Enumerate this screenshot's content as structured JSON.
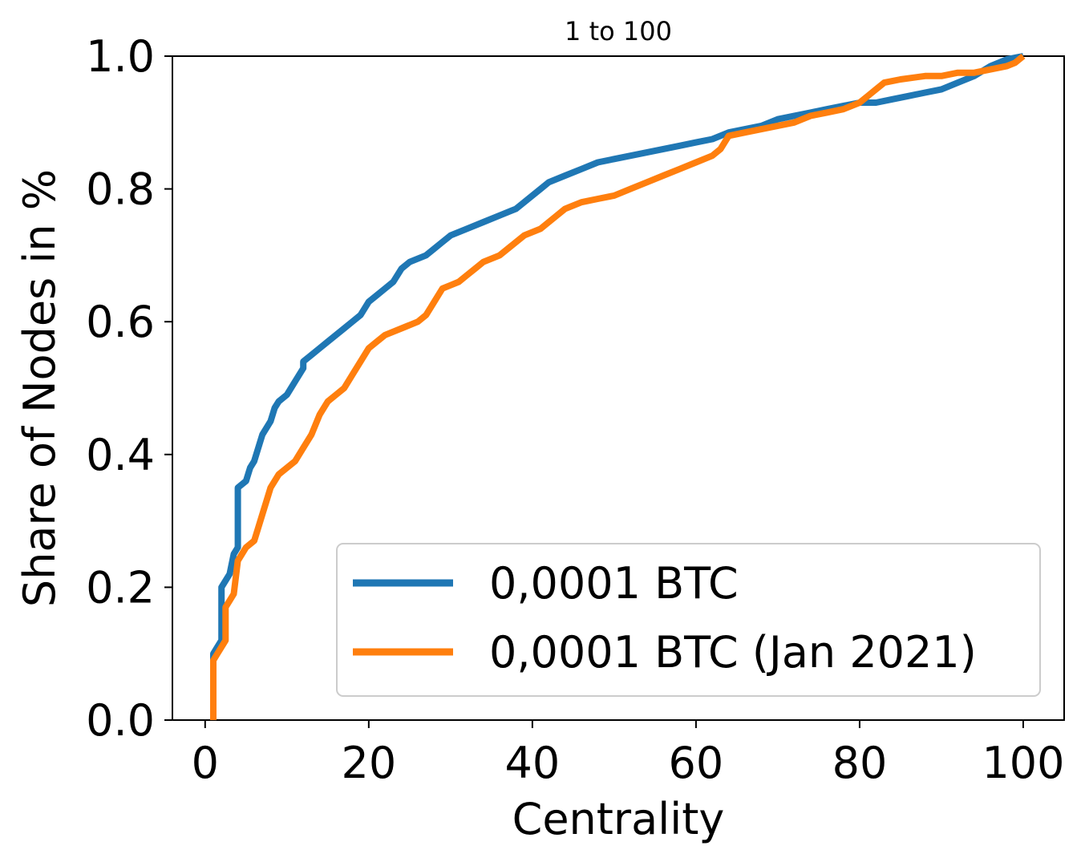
{
  "chart_data": {
    "type": "line",
    "title": "1 to 100",
    "xlabel": "Centrality",
    "ylabel": "Share of Nodes in %",
    "xlim": [
      -4,
      105
    ],
    "ylim": [
      0,
      1.0
    ],
    "x_ticks": [
      "0",
      "20",
      "40",
      "60",
      "80",
      "100"
    ],
    "y_ticks": [
      "0.0",
      "0.2",
      "0.4",
      "0.6",
      "0.8",
      "1.0"
    ],
    "grid": false,
    "legend_position": "lower-right",
    "series": [
      {
        "name": "0,0001 BTC",
        "color": "#1f77b4",
        "points": [
          [
            1,
            0.0
          ],
          [
            1,
            0.1
          ],
          [
            1.5,
            0.11
          ],
          [
            2,
            0.12
          ],
          [
            2,
            0.2
          ],
          [
            2.5,
            0.21
          ],
          [
            3,
            0.22
          ],
          [
            3.5,
            0.25
          ],
          [
            4,
            0.26
          ],
          [
            4,
            0.35
          ],
          [
            5,
            0.36
          ],
          [
            5.5,
            0.38
          ],
          [
            6,
            0.39
          ],
          [
            6.5,
            0.41
          ],
          [
            7,
            0.43
          ],
          [
            8,
            0.45
          ],
          [
            8.5,
            0.47
          ],
          [
            9,
            0.48
          ],
          [
            10,
            0.49
          ],
          [
            10.5,
            0.5
          ],
          [
            11,
            0.51
          ],
          [
            12,
            0.53
          ],
          [
            12,
            0.54
          ],
          [
            13,
            0.55
          ],
          [
            14,
            0.56
          ],
          [
            15,
            0.57
          ],
          [
            16,
            0.58
          ],
          [
            17,
            0.59
          ],
          [
            18,
            0.6
          ],
          [
            19,
            0.61
          ],
          [
            20,
            0.63
          ],
          [
            21,
            0.64
          ],
          [
            22,
            0.65
          ],
          [
            23,
            0.66
          ],
          [
            24,
            0.68
          ],
          [
            25,
            0.69
          ],
          [
            27,
            0.7
          ],
          [
            28,
            0.71
          ],
          [
            29,
            0.72
          ],
          [
            30,
            0.73
          ],
          [
            32,
            0.74
          ],
          [
            34,
            0.75
          ],
          [
            36,
            0.76
          ],
          [
            38,
            0.77
          ],
          [
            40,
            0.79
          ],
          [
            41,
            0.8
          ],
          [
            42,
            0.81
          ],
          [
            44,
            0.82
          ],
          [
            46,
            0.83
          ],
          [
            48,
            0.84
          ],
          [
            50,
            0.845
          ],
          [
            52,
            0.85
          ],
          [
            54,
            0.855
          ],
          [
            56,
            0.86
          ],
          [
            58,
            0.865
          ],
          [
            60,
            0.87
          ],
          [
            62,
            0.875
          ],
          [
            64,
            0.885
          ],
          [
            66,
            0.89
          ],
          [
            68,
            0.895
          ],
          [
            70,
            0.905
          ],
          [
            72,
            0.91
          ],
          [
            74,
            0.915
          ],
          [
            76,
            0.92
          ],
          [
            78,
            0.925
          ],
          [
            80,
            0.93
          ],
          [
            82,
            0.93
          ],
          [
            84,
            0.935
          ],
          [
            86,
            0.94
          ],
          [
            88,
            0.945
          ],
          [
            90,
            0.95
          ],
          [
            92,
            0.96
          ],
          [
            94,
            0.97
          ],
          [
            96,
            0.985
          ],
          [
            98,
            0.995
          ],
          [
            100,
            1.0
          ]
        ]
      },
      {
        "name": "0,0001 BTC (Jan 2021)",
        "color": "#ff7f0e",
        "points": [
          [
            1,
            0.0
          ],
          [
            1,
            0.09
          ],
          [
            1.5,
            0.1
          ],
          [
            2,
            0.11
          ],
          [
            2.5,
            0.12
          ],
          [
            2.5,
            0.17
          ],
          [
            3,
            0.18
          ],
          [
            3.5,
            0.19
          ],
          [
            4,
            0.24
          ],
          [
            4.5,
            0.25
          ],
          [
            5,
            0.26
          ],
          [
            6,
            0.27
          ],
          [
            6.5,
            0.29
          ],
          [
            7,
            0.31
          ],
          [
            7.5,
            0.33
          ],
          [
            8,
            0.35
          ],
          [
            9,
            0.37
          ],
          [
            10,
            0.38
          ],
          [
            11,
            0.39
          ],
          [
            12,
            0.41
          ],
          [
            13,
            0.43
          ],
          [
            14,
            0.46
          ],
          [
            15,
            0.48
          ],
          [
            16,
            0.49
          ],
          [
            17,
            0.5
          ],
          [
            18,
            0.52
          ],
          [
            19,
            0.54
          ],
          [
            20,
            0.56
          ],
          [
            21,
            0.57
          ],
          [
            22,
            0.58
          ],
          [
            24,
            0.59
          ],
          [
            26,
            0.6
          ],
          [
            27,
            0.61
          ],
          [
            28,
            0.63
          ],
          [
            29,
            0.65
          ],
          [
            30,
            0.655
          ],
          [
            31,
            0.66
          ],
          [
            32,
            0.67
          ],
          [
            33,
            0.68
          ],
          [
            34,
            0.69
          ],
          [
            36,
            0.7
          ],
          [
            37,
            0.71
          ],
          [
            39,
            0.73
          ],
          [
            41,
            0.74
          ],
          [
            43,
            0.76
          ],
          [
            44,
            0.77
          ],
          [
            46,
            0.78
          ],
          [
            48,
            0.785
          ],
          [
            50,
            0.79
          ],
          [
            52,
            0.8
          ],
          [
            54,
            0.81
          ],
          [
            56,
            0.82
          ],
          [
            58,
            0.83
          ],
          [
            60,
            0.84
          ],
          [
            62,
            0.85
          ],
          [
            63,
            0.86
          ],
          [
            64,
            0.88
          ],
          [
            66,
            0.885
          ],
          [
            68,
            0.89
          ],
          [
            70,
            0.895
          ],
          [
            72,
            0.9
          ],
          [
            74,
            0.91
          ],
          [
            76,
            0.915
          ],
          [
            78,
            0.92
          ],
          [
            80,
            0.93
          ],
          [
            81,
            0.94
          ],
          [
            82,
            0.95
          ],
          [
            83,
            0.96
          ],
          [
            85,
            0.965
          ],
          [
            88,
            0.97
          ],
          [
            90,
            0.97
          ],
          [
            92,
            0.975
          ],
          [
            94,
            0.975
          ],
          [
            96,
            0.98
          ],
          [
            98,
            0.985
          ],
          [
            99,
            0.99
          ],
          [
            100,
            1.0
          ]
        ]
      }
    ]
  }
}
